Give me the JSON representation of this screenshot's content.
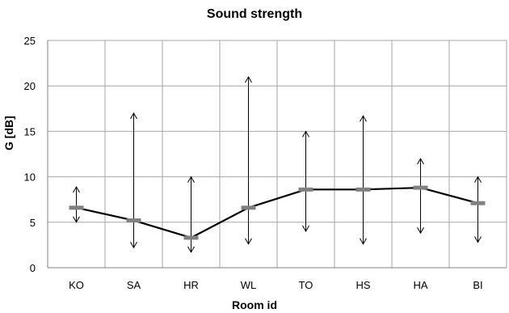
{
  "chart_data": {
    "type": "line",
    "title": "Sound strength",
    "xlabel": "Room id",
    "ylabel": "G [dB]",
    "categories": [
      "KO",
      "SA",
      "HR",
      "WL",
      "TO",
      "HS",
      "HA",
      "BI"
    ],
    "values": [
      6.6,
      5.2,
      3.3,
      6.6,
      8.6,
      8.6,
      8.8,
      7.1
    ],
    "error_range": {
      "low": [
        5.0,
        2.2,
        1.7,
        2.6,
        4.0,
        2.6,
        3.8,
        2.8
      ],
      "high": [
        8.9,
        17.0,
        10.0,
        21.0,
        15.0,
        16.7,
        12.0,
        10.0
      ]
    },
    "ylim": [
      0,
      25
    ],
    "yticks": [
      0,
      5,
      10,
      15,
      20,
      25
    ],
    "grid": true,
    "colors": {
      "line": "#000000",
      "marker": "#808080",
      "grid": "#a6a6a6",
      "axis": "#808080"
    }
  }
}
